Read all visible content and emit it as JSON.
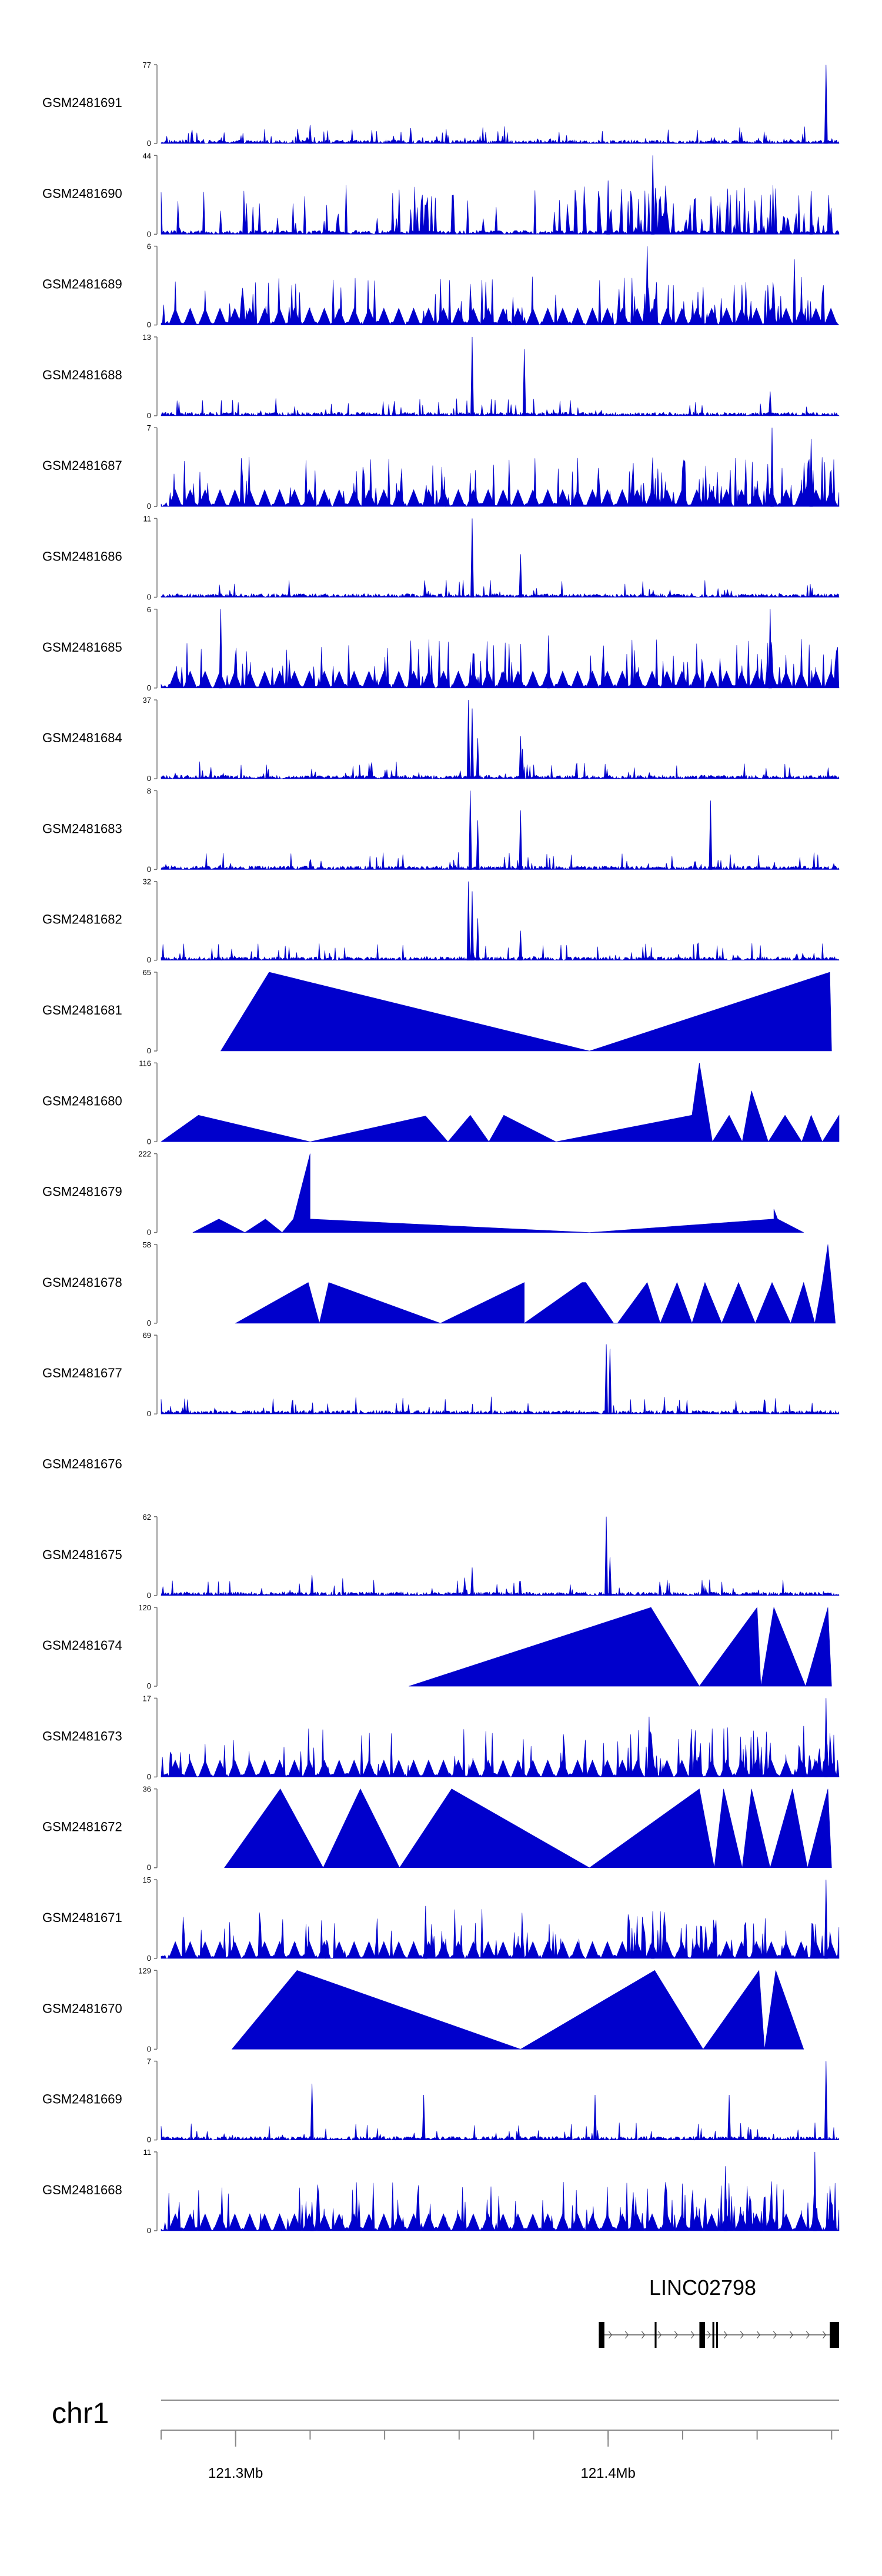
{
  "chart_data": {
    "type": "area",
    "title": "",
    "chromosome": "chr1",
    "xlim_mb": [
      121.28,
      121.462
    ],
    "axis_ticks": [
      {
        "position_mb": 121.3,
        "label": "121.3Mb"
      },
      {
        "position_mb": 121.4,
        "label": "121.4Mb"
      }
    ],
    "minor_tick_interval_mb": 0.02,
    "fill_color": "#0000cc",
    "tracks": [
      {
        "name": "GSM2481691",
        "ymax": 77,
        "ymin": 0,
        "style": "dense",
        "peaks": [
          [
            121.32,
            18
          ],
          [
            121.347,
            15
          ],
          [
            121.357,
            8
          ],
          [
            121.4285,
            6
          ],
          [
            121.4585,
            77
          ]
        ]
      },
      {
        "name": "GSM2481690",
        "ymax": 44,
        "ymin": 0,
        "style": "triangles",
        "peaks": [
          [
            121.4,
            30
          ],
          [
            121.412,
            44
          ],
          [
            121.4545,
            24
          ]
        ]
      },
      {
        "name": "GSM2481689",
        "ymax": 6,
        "ymin": 0,
        "style": "mixed",
        "peaks": [
          [
            121.4105,
            6
          ],
          [
            121.45,
            5
          ]
        ]
      },
      {
        "name": "GSM2481688",
        "ymax": 13,
        "ymin": 0,
        "style": "dense",
        "peaks": [
          [
            121.3635,
            13
          ],
          [
            121.3775,
            11
          ],
          [
            121.4435,
            4
          ]
        ]
      },
      {
        "name": "GSM2481687",
        "ymax": 7,
        "ymin": 0,
        "style": "mixed",
        "peaks": [
          [
            121.444,
            7
          ],
          [
            121.4545,
            6
          ]
        ]
      },
      {
        "name": "GSM2481686",
        "ymax": 11,
        "ymin": 0,
        "style": "dense",
        "peaks": [
          [
            121.3635,
            11
          ],
          [
            121.3765,
            6
          ]
        ]
      },
      {
        "name": "GSM2481685",
        "ymax": 6,
        "ymin": 0,
        "style": "mixed",
        "peaks": [
          [
            121.296,
            6
          ],
          [
            121.384,
            4
          ],
          [
            121.4435,
            6
          ]
        ]
      },
      {
        "name": "GSM2481684",
        "ymax": 37,
        "ymin": 0,
        "style": "dense",
        "peaks": [
          [
            121.3625,
            37
          ],
          [
            121.3635,
            33
          ],
          [
            121.365,
            19
          ],
          [
            121.3765,
            20
          ],
          [
            121.377,
            14
          ]
        ]
      },
      {
        "name": "GSM2481683",
        "ymax": 8,
        "ymin": 0,
        "style": "dense",
        "peaks": [
          [
            121.363,
            8
          ],
          [
            121.365,
            5
          ],
          [
            121.3765,
            6
          ],
          [
            121.4275,
            7
          ]
        ]
      },
      {
        "name": "GSM2481682",
        "ymax": 32,
        "ymin": 0,
        "style": "dense",
        "peaks": [
          [
            121.3625,
            32
          ],
          [
            121.3635,
            28
          ],
          [
            121.365,
            17
          ],
          [
            121.3765,
            12
          ]
        ]
      },
      {
        "name": "GSM2481681",
        "ymax": 65,
        "ymin": 0,
        "style": "sparse",
        "points": [
          [
            121.296,
            0
          ],
          [
            121.309,
            65
          ],
          [
            121.395,
            0
          ],
          [
            121.4595,
            65
          ],
          [
            121.46,
            0
          ]
        ]
      },
      {
        "name": "GSM2481680",
        "ymax": 116,
        "ymin": 0,
        "style": "sparse",
        "points": [
          [
            121.28,
            0
          ],
          [
            121.29,
            39
          ],
          [
            121.32,
            0
          ],
          [
            121.351,
            38
          ],
          [
            121.357,
            0
          ],
          [
            121.363,
            39
          ],
          [
            121.368,
            0
          ],
          [
            121.372,
            39
          ],
          [
            121.386,
            0
          ],
          [
            121.4225,
            39
          ],
          [
            121.4245,
            116
          ],
          [
            121.428,
            0
          ],
          [
            121.4325,
            39
          ],
          [
            121.436,
            0
          ],
          [
            121.4385,
            75
          ],
          [
            121.443,
            0
          ],
          [
            121.4475,
            39
          ],
          [
            121.452,
            0
          ],
          [
            121.4545,
            39
          ],
          [
            121.4575,
            0
          ],
          [
            121.462,
            39
          ],
          [
            121.462,
            0
          ]
        ]
      },
      {
        "name": "GSM2481679",
        "ymax": 222,
        "ymin": 0,
        "style": "sparse",
        "points": [
          [
            121.2885,
            0
          ],
          [
            121.2955,
            38
          ],
          [
            121.3025,
            0
          ],
          [
            121.308,
            38
          ],
          [
            121.3125,
            0
          ],
          [
            121.3155,
            38
          ],
          [
            121.32,
            222
          ],
          [
            121.32,
            38
          ],
          [
            121.395,
            0
          ],
          [
            121.4445,
            38
          ],
          [
            121.4445,
            66
          ],
          [
            121.4455,
            38
          ],
          [
            121.4525,
            0
          ]
        ]
      },
      {
        "name": "GSM2481678",
        "ymax": 58,
        "ymin": 0,
        "style": "sparse",
        "points": [
          [
            121.3,
            0
          ],
          [
            121.3195,
            30
          ],
          [
            121.3195,
            30
          ],
          [
            121.3225,
            0
          ],
          [
            121.325,
            30
          ],
          [
            121.355,
            0
          ],
          [
            121.3775,
            30
          ],
          [
            121.3775,
            0
          ],
          [
            121.393,
            30
          ],
          [
            121.394,
            30
          ],
          [
            121.4015,
            0
          ],
          [
            121.4025,
            0
          ],
          [
            121.4105,
            30
          ],
          [
            121.414,
            0
          ],
          [
            121.4185,
            30
          ],
          [
            121.4225,
            0
          ],
          [
            121.426,
            30
          ],
          [
            121.4305,
            0
          ],
          [
            121.435,
            30
          ],
          [
            121.4395,
            0
          ],
          [
            121.444,
            30
          ],
          [
            121.449,
            0
          ],
          [
            121.4525,
            30
          ],
          [
            121.4555,
            0
          ],
          [
            121.4575,
            30
          ],
          [
            121.459,
            58
          ],
          [
            121.461,
            0
          ]
        ]
      },
      {
        "name": "GSM2481677",
        "ymax": 69,
        "ymin": 0,
        "style": "dense",
        "peaks": [
          [
            121.3995,
            61
          ],
          [
            121.4005,
            57
          ],
          [
            121.3205,
            5
          ],
          [
            121.419,
            4
          ]
        ]
      },
      {
        "name": "GSM2481676",
        "ymax": null,
        "ymin": null,
        "style": "empty",
        "peaks": []
      },
      {
        "name": "GSM2481675",
        "ymax": 62,
        "ymin": 0,
        "style": "dense",
        "peaks": [
          [
            121.3995,
            62
          ],
          [
            121.4005,
            30
          ],
          [
            121.3205,
            16
          ],
          [
            121.3615,
            14
          ],
          [
            121.3635,
            22
          ]
        ]
      },
      {
        "name": "GSM2481674",
        "ymax": 120,
        "ymin": 0,
        "style": "sparse",
        "points": [
          [
            121.3465,
            0
          ],
          [
            121.4115,
            120
          ],
          [
            121.4245,
            0
          ],
          [
            121.44,
            120
          ],
          [
            121.441,
            0
          ],
          [
            121.4445,
            120
          ],
          [
            121.453,
            0
          ],
          [
            121.459,
            120
          ],
          [
            121.46,
            0
          ]
        ]
      },
      {
        "name": "GSM2481673",
        "ymax": 17,
        "ymin": 0,
        "style": "mixed",
        "peaks": [
          [
            121.411,
            13
          ],
          [
            121.4585,
            17
          ],
          [
            121.4525,
            11
          ]
        ]
      },
      {
        "name": "GSM2481672",
        "ymax": 36,
        "ymin": 0,
        "style": "sparse",
        "points": [
          [
            121.297,
            0
          ],
          [
            121.312,
            36
          ],
          [
            121.3235,
            0
          ],
          [
            121.3335,
            36
          ],
          [
            121.344,
            0
          ],
          [
            121.358,
            36
          ],
          [
            121.395,
            0
          ],
          [
            121.4245,
            36
          ],
          [
            121.4285,
            0
          ],
          [
            121.431,
            36
          ],
          [
            121.436,
            0
          ],
          [
            121.4385,
            36
          ],
          [
            121.4435,
            0
          ],
          [
            121.4495,
            36
          ],
          [
            121.4535,
            0
          ],
          [
            121.459,
            36
          ],
          [
            121.46,
            0
          ]
        ]
      },
      {
        "name": "GSM2481671",
        "ymax": 15,
        "ymin": 0,
        "style": "mixed",
        "peaks": [
          [
            121.4585,
            15
          ],
          [
            121.351,
            10
          ],
          [
            121.412,
            9
          ]
        ]
      },
      {
        "name": "GSM2481670",
        "ymax": 129,
        "ymin": 0,
        "style": "sparse",
        "points": [
          [
            121.299,
            0
          ],
          [
            121.3165,
            129
          ],
          [
            121.3765,
            0
          ],
          [
            121.4125,
            129
          ],
          [
            121.4255,
            0
          ],
          [
            121.4405,
            129
          ],
          [
            121.442,
            0
          ],
          [
            121.445,
            129
          ],
          [
            121.4525,
            0
          ]
        ]
      },
      {
        "name": "GSM2481669",
        "ymax": 7,
        "ymin": 0,
        "style": "dense",
        "peaks": [
          [
            121.4585,
            7
          ],
          [
            121.3205,
            5
          ],
          [
            121.3505,
            4
          ],
          [
            121.3965,
            4
          ],
          [
            121.4325,
            4
          ]
        ]
      },
      {
        "name": "GSM2481668",
        "ymax": 11,
        "ymin": 0,
        "style": "mixed",
        "peaks": [
          [
            121.3205,
            4
          ],
          [
            121.4555,
            11
          ],
          [
            121.4315,
            9
          ]
        ]
      }
    ],
    "gene_annotation": {
      "name": "LINC02798",
      "strand": "+",
      "exons_mb": [
        [
          121.3975,
          121.399
        ],
        [
          121.4125,
          121.413
        ],
        [
          121.4245,
          121.426
        ],
        [
          121.428,
          121.4285
        ],
        [
          121.429,
          121.4293
        ],
        [
          121.4595,
          121.462
        ]
      ]
    }
  }
}
